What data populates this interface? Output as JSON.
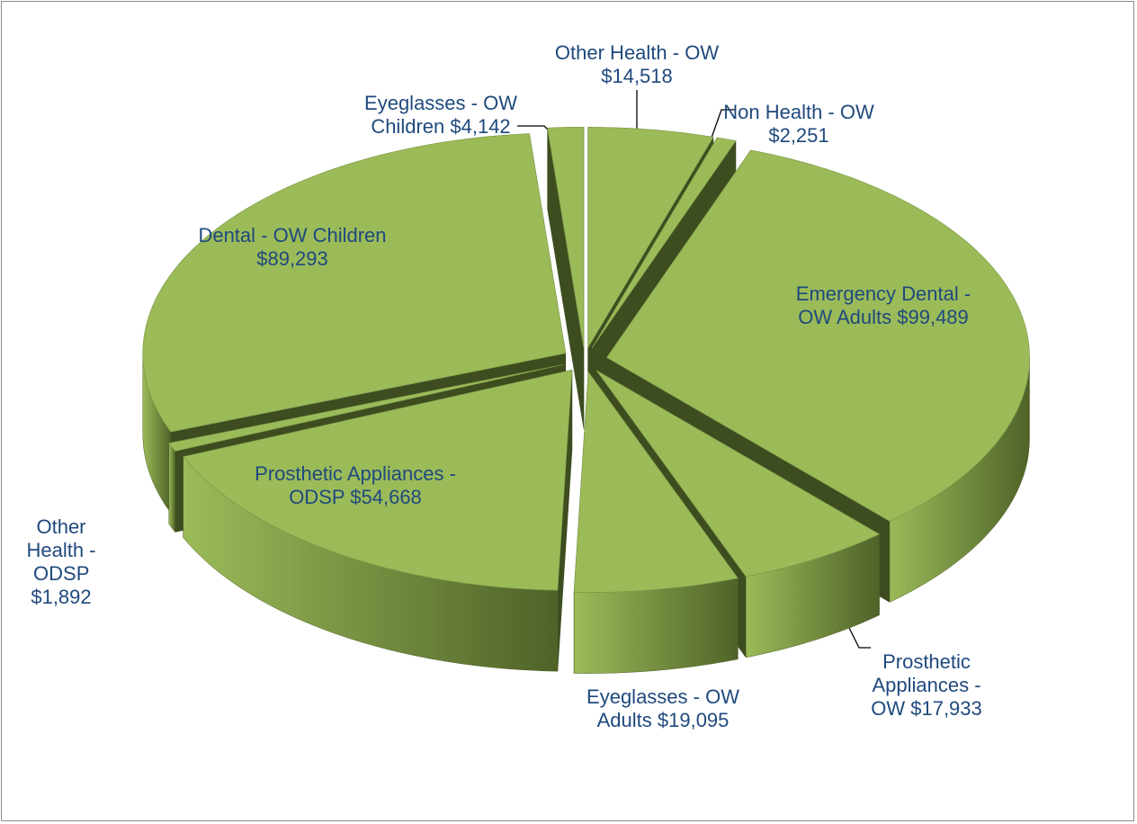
{
  "chart_data": {
    "type": "pie3d",
    "categories": [
      "Other Health  - OW",
      "Non Health - OW",
      "Emergency Dental - OW Adults",
      "Prosthetic Appliances - OW",
      "Eyeglasses - OW Adults",
      "Prosthetic Appliances - ODSP",
      "Other Health - ODSP",
      "Dental - OW Children",
      "Eyeglasses - OW Children"
    ],
    "values": [
      14518,
      2251,
      99489,
      17933,
      19095,
      54668,
      1892,
      89293,
      4142
    ],
    "value_labels": [
      "$14,518",
      "$2,251",
      "$99,489",
      "$17,933",
      "$19,095",
      "$54,668",
      "$1,892",
      "$89,293",
      "$4,142"
    ],
    "color": "#9bbb59"
  }
}
